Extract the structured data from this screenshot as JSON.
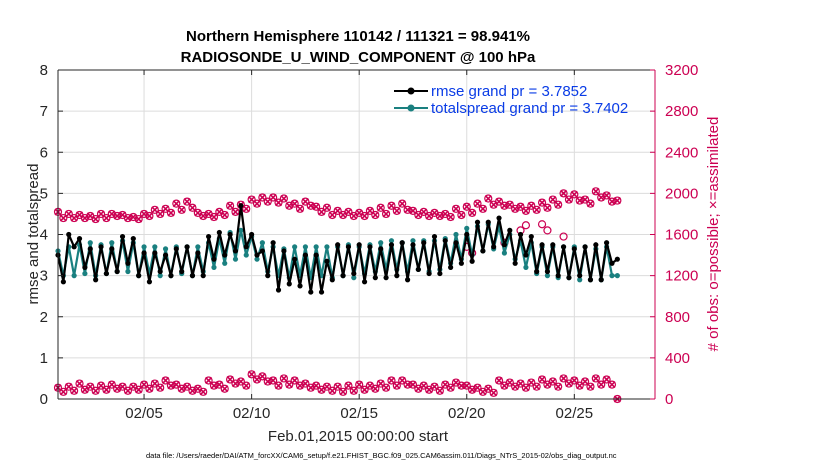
{
  "colors": {
    "rmse": "#000000",
    "totalspread": "#1a8080",
    "obs": "#cc0052",
    "legend_text": "#0a3ce6",
    "axis": "#262626"
  },
  "chart_data": {
    "type": "line",
    "title_line1": "Northern Hemisphere 110142 / 111321 = 98.941%",
    "title_line2": "RADIOSONDE_U_WIND_COMPONENT @ 100 hPa",
    "xlabel": "Feb.01,2015 00:00:00 start",
    "ylabel_left": "rmse and totalspread",
    "ylabel_right": "# of obs: o=possible; ×=assimilated",
    "footnote": "data file: /Users/raeder/DAI/ATM_forcXX/CAM6_setup/f.e21.FHIST_BGC.f09_025.CAM6assim.011/Diags_NTrS_2015-02/obs_diag_output.nc",
    "xlim": [
      1.0,
      28.75
    ],
    "ylim_left": [
      0,
      8
    ],
    "ylim_right": [
      0,
      3200
    ],
    "x_ticks": [
      5,
      10,
      15,
      20,
      25
    ],
    "x_tick_labels": [
      "02/05",
      "02/10",
      "02/15",
      "02/20",
      "02/25"
    ],
    "y_left_ticks": [
      0,
      1,
      2,
      3,
      4,
      5,
      6,
      7,
      8
    ],
    "y_right_ticks": [
      0,
      400,
      800,
      1200,
      1600,
      2000,
      2400,
      2800,
      3200
    ],
    "legend": {
      "position": "top-right",
      "rmse_label": "rmse grand pr = 3.7852",
      "spread_label": "totalspread grand pr = 3.7402"
    },
    "x_step": 0.25,
    "series": [
      {
        "name": "rmse",
        "values": [
          3.5,
          2.85,
          4.0,
          3.7,
          3.9,
          3.2,
          3.65,
          2.9,
          3.7,
          3.05,
          3.65,
          3.1,
          3.95,
          3.3,
          3.9,
          3.0,
          3.55,
          2.85,
          3.55,
          3.1,
          3.5,
          3.0,
          3.65,
          3.1,
          3.7,
          3.0,
          3.55,
          3.0,
          3.95,
          3.4,
          4.05,
          3.5,
          4.0,
          3.6,
          4.7,
          3.7,
          4.0,
          3.5,
          3.6,
          3.0,
          3.8,
          2.65,
          3.6,
          2.8,
          3.4,
          2.75,
          3.5,
          2.6,
          3.5,
          2.6,
          3.35,
          2.9,
          3.75,
          3.0,
          3.7,
          3.05,
          3.75,
          2.85,
          3.7,
          2.95,
          3.65,
          2.95,
          3.75,
          3.0,
          3.8,
          2.9,
          3.75,
          3.15,
          3.8,
          3.05,
          3.95,
          3.05,
          3.85,
          3.2,
          3.8,
          3.3,
          4.0,
          3.35,
          4.3,
          3.6,
          4.3,
          3.7,
          4.4,
          3.75,
          4.1,
          3.3,
          4.0,
          3.5,
          3.95,
          3.1,
          3.75,
          3.1,
          3.75,
          3.0,
          3.7,
          2.95,
          3.65,
          3.0,
          3.7,
          2.9,
          3.75,
          2.9,
          3.8,
          3.3,
          3.4
        ]
      },
      {
        "name": "totalspread",
        "values": [
          3.6,
          3.0,
          3.7,
          3.0,
          3.75,
          3.05,
          3.8,
          3.0,
          3.75,
          3.05,
          3.8,
          3.1,
          3.85,
          3.1,
          3.8,
          3.0,
          3.7,
          3.05,
          3.7,
          3.0,
          3.65,
          3.0,
          3.7,
          3.05,
          3.7,
          3.0,
          3.7,
          3.1,
          3.8,
          3.2,
          3.9,
          3.3,
          4.05,
          3.4,
          4.1,
          3.5,
          3.95,
          3.4,
          3.8,
          3.1,
          3.7,
          3.0,
          3.65,
          2.95,
          3.7,
          3.0,
          3.7,
          2.95,
          3.7,
          3.0,
          3.7,
          2.95,
          3.7,
          3.0,
          3.75,
          2.95,
          3.7,
          3.05,
          3.75,
          3.1,
          3.8,
          3.15,
          3.85,
          3.15,
          3.8,
          3.1,
          3.85,
          3.15,
          3.85,
          3.1,
          3.85,
          3.15,
          3.9,
          3.3,
          4.0,
          3.4,
          4.15,
          3.5,
          4.2,
          3.6,
          4.25,
          3.65,
          4.2,
          3.55,
          4.0,
          3.4,
          3.85,
          3.2,
          3.8,
          3.05,
          3.7,
          3.0,
          3.7,
          2.95,
          3.7,
          2.95,
          3.7,
          2.9,
          3.7,
          2.9,
          3.65,
          2.9,
          3.7,
          3.0,
          3.0
        ]
      },
      {
        "name": "obs_upper",
        "values": [
          1820,
          1760,
          1800,
          1760,
          1790,
          1760,
          1780,
          1750,
          1800,
          1760,
          1800,
          1780,
          1790,
          1760,
          1770,
          1750,
          1800,
          1780,
          1840,
          1800,
          1850,
          1810,
          1900,
          1840,
          1920,
          1860,
          1810,
          1780,
          1800,
          1770,
          1820,
          1790,
          1880,
          1820,
          1890,
          1850,
          1940,
          1900,
          1960,
          1920,
          1960,
          1910,
          1950,
          1880,
          1900,
          1850,
          1920,
          1880,
          1870,
          1820,
          1860,
          1790,
          1830,
          1790,
          1820,
          1780,
          1810,
          1780,
          1830,
          1790,
          1860,
          1800,
          1880,
          1830,
          1900,
          1840,
          1830,
          1790,
          1820,
          1780,
          1810,
          1780,
          1800,
          1770,
          1850,
          1790,
          1870,
          1810,
          1900,
          1850,
          1950,
          1890,
          1920,
          1880,
          1890,
          1850,
          1870,
          1830,
          1880,
          1840,
          1910,
          1860,
          1940,
          1890,
          2000,
          1940,
          1990,
          1930,
          1940,
          1900,
          2020,
          1960,
          1980,
          1920,
          1930
        ]
      },
      {
        "name": "obs_lower",
        "values": [
          110,
          70,
          120,
          80,
          150,
          90,
          120,
          80,
          130,
          90,
          140,
          100,
          120,
          80,
          120,
          90,
          140,
          100,
          150,
          110,
          180,
          130,
          140,
          100,
          120,
          80,
          100,
          70,
          180,
          130,
          140,
          100,
          190,
          150,
          170,
          130,
          240,
          190,
          220,
          170,
          180,
          130,
          200,
          140,
          180,
          130,
          150,
          110,
          130,
          90,
          120,
          80,
          120,
          70,
          130,
          80,
          140,
          90,
          130,
          100,
          150,
          110,
          180,
          130,
          180,
          140,
          140,
          100,
          130,
          90,
          120,
          80,
          140,
          110,
          160,
          130,
          130,
          90,
          110,
          70,
          100,
          60,
          180,
          130,
          160,
          120,
          150,
          110,
          160,
          120,
          190,
          140,
          170,
          120,
          200,
          150,
          180,
          130,
          170,
          120,
          200,
          140,
          190,
          140,
          0
        ]
      },
      {
        "name": "obs_possible_extra",
        "values": [
          [
            20.0,
            1480
          ],
          [
            20.25,
            1420
          ],
          [
            21.75,
            1520
          ],
          [
            22.5,
            1640
          ],
          [
            22.75,
            1690
          ],
          [
            23.5,
            1700
          ],
          [
            23.75,
            1640
          ],
          [
            24.5,
            1580
          ]
        ]
      }
    ]
  }
}
